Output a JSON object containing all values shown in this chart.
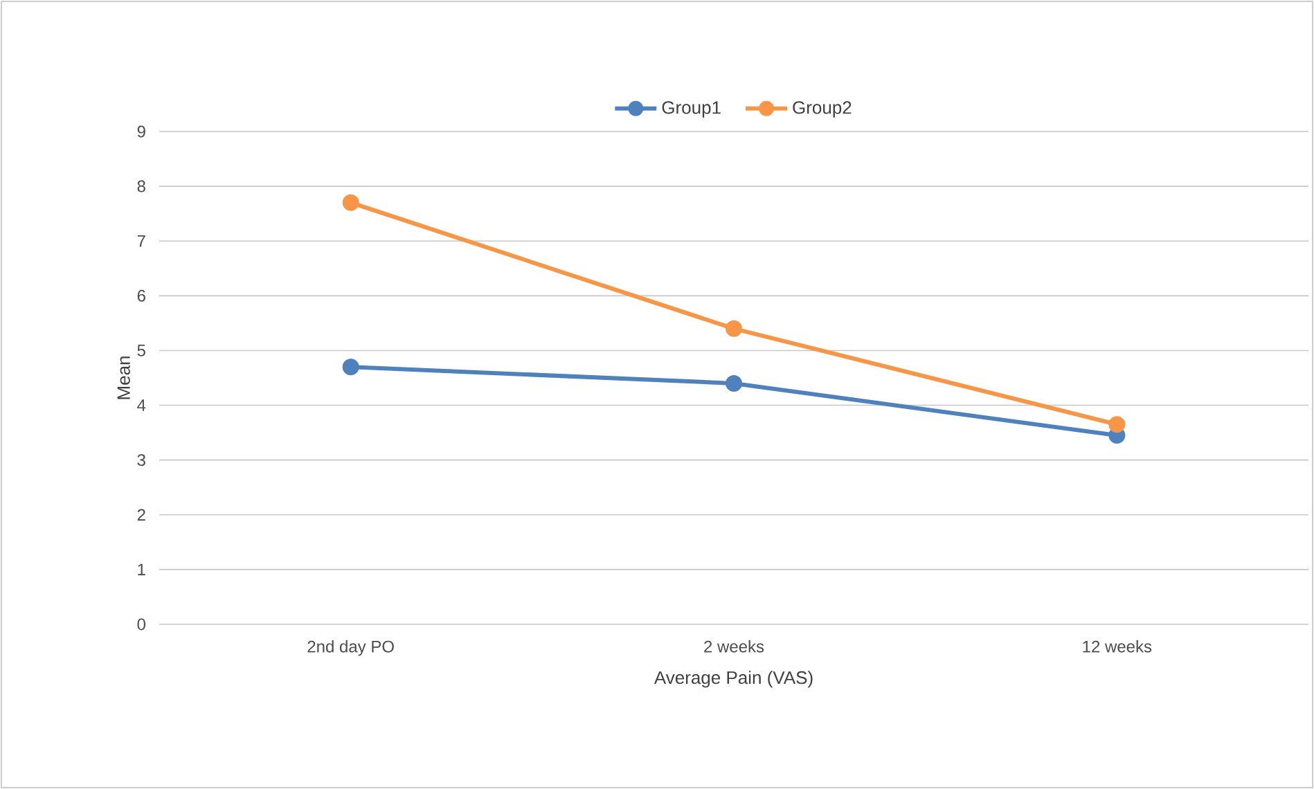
{
  "chart_data": {
    "type": "line",
    "xlabel": "Average Pain (VAS)",
    "ylabel": "Mean",
    "categories": [
      "2nd  day PO",
      "2 weeks",
      "12 weeks"
    ],
    "series": [
      {
        "name": "Group1",
        "color": "#4f81bd",
        "values": [
          4.7,
          4.4,
          3.45
        ]
      },
      {
        "name": "Group2",
        "color": "#f79646",
        "values": [
          7.7,
          5.4,
          3.65
        ]
      }
    ],
    "ylim": [
      0,
      9
    ],
    "yticks": [
      0,
      1,
      2,
      3,
      4,
      5,
      6,
      7,
      8,
      9
    ],
    "grid": "y",
    "legend": "top",
    "marker": "circle",
    "line_style": "solid"
  }
}
